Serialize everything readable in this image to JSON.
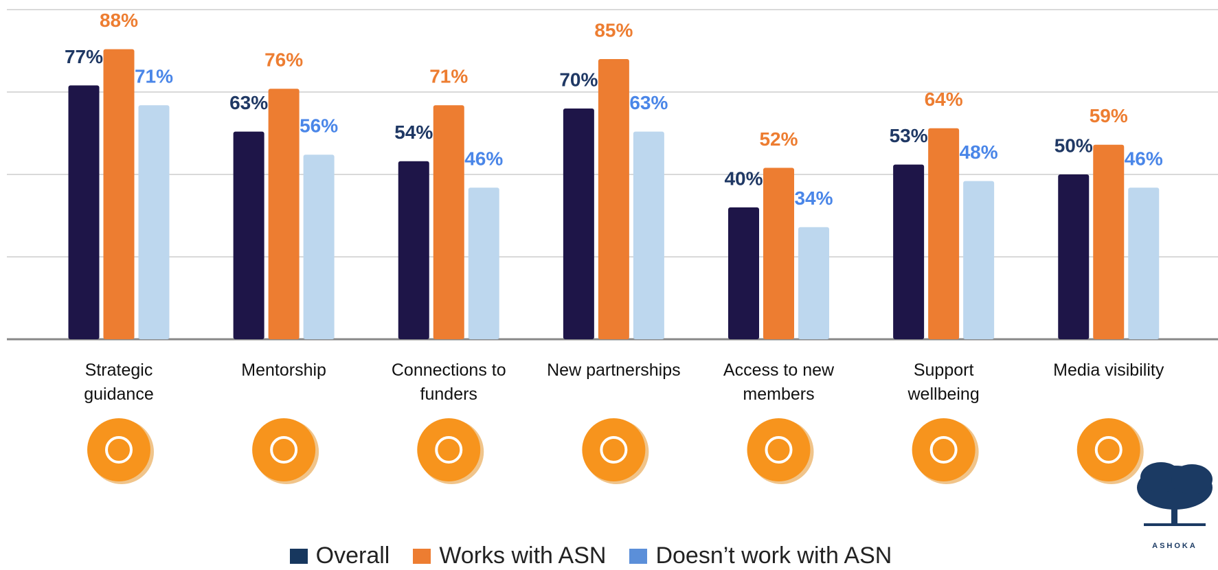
{
  "chart_data": {
    "type": "bar",
    "categories": [
      "Strategic\nguidance",
      "Mentorship",
      "Connections to\nfunders",
      "New partnerships",
      "Access to new\nmembers",
      "Support\nwellbeing",
      "Media visibility"
    ],
    "series": [
      {
        "name": "Overall",
        "color": "#1e1548",
        "legend_color": "#17375e",
        "label_color": "#1f3864",
        "values": [
          77,
          63,
          54,
          70,
          40,
          53,
          50
        ],
        "value_labels": [
          "77%",
          "63%",
          "54%",
          "70%",
          "40%",
          "53%",
          "50%"
        ]
      },
      {
        "name": "Works with ASN",
        "color": "#ed7d31",
        "legend_color": "#ed7d31",
        "label_color": "#ed7d31",
        "values": [
          88,
          76,
          71,
          85,
          52,
          64,
          59
        ],
        "value_labels": [
          "88%",
          "76%",
          "71%",
          "85%",
          "52%",
          "64%",
          "59%"
        ]
      },
      {
        "name": "Doesn’t work with ASN",
        "color": "#bdd7ee",
        "legend_color": "#5b8fd9",
        "label_color": "#4a86e8",
        "values": [
          71,
          56,
          46,
          63,
          34,
          48,
          46
        ],
        "value_labels": [
          "71%",
          "56%",
          "46%",
          "63%",
          "34%",
          "48%",
          "46%"
        ]
      }
    ],
    "ylim": [
      0,
      100
    ],
    "yticks": [
      0,
      25,
      50,
      75,
      100
    ],
    "grid": true,
    "legend": "bottom"
  },
  "logo": {
    "text": "ASHOKA"
  }
}
